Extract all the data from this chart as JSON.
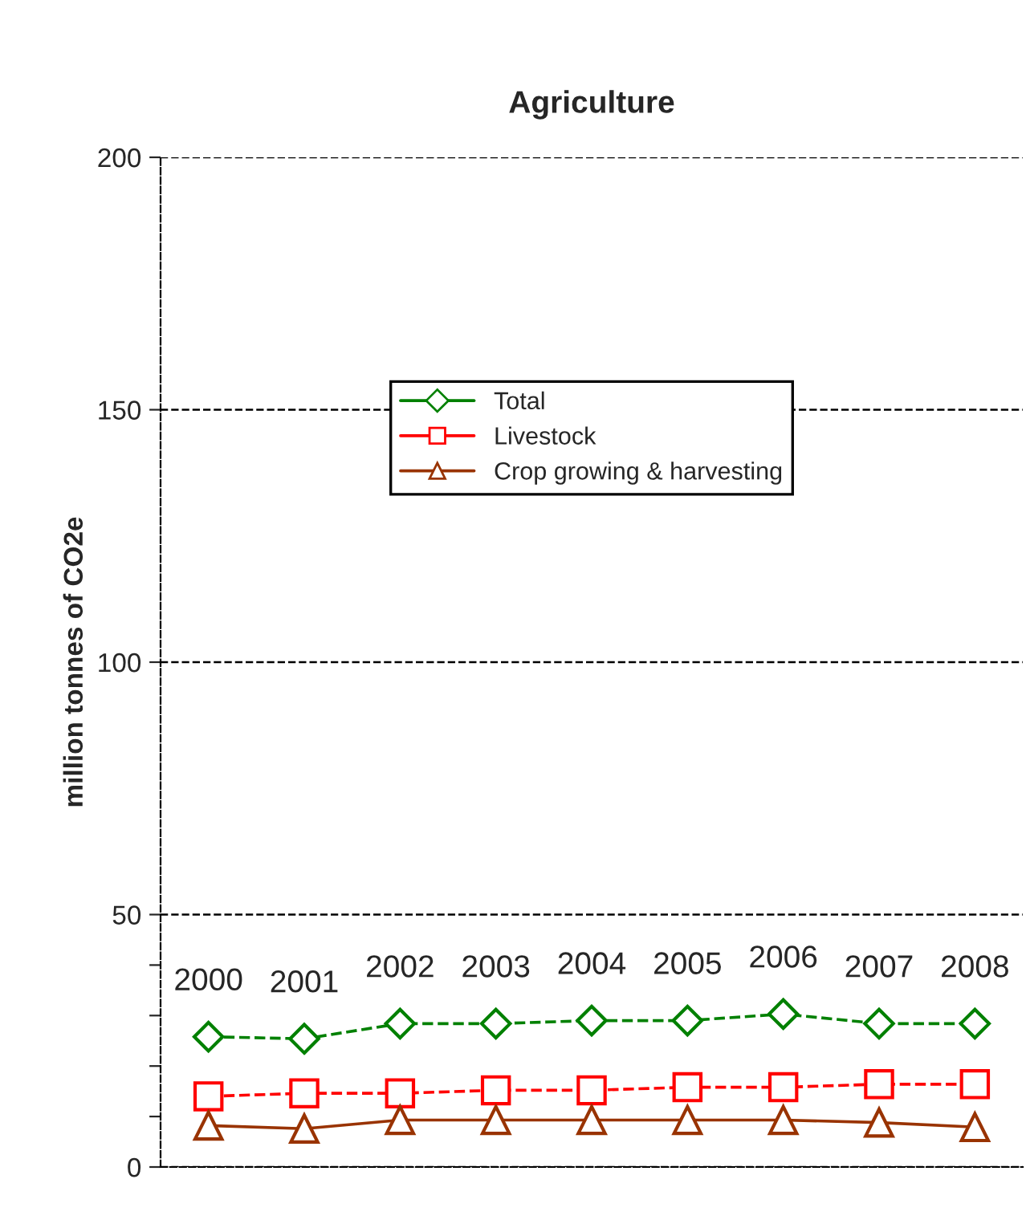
{
  "chart_data": {
    "type": "line",
    "title": "Agriculture",
    "ylabel": "million tonnes of CO2e",
    "categories": [
      "2000",
      "2001",
      "2002",
      "2003",
      "2004",
      "2005",
      "2006",
      "2007",
      "2008"
    ],
    "series": [
      {
        "name": "Total",
        "color": "#008000",
        "marker": "diamond",
        "line_style": "dashed",
        "values": [
          25.8,
          25.4,
          28.4,
          28.4,
          29.0,
          29.0,
          30.3,
          28.4,
          28.4
        ]
      },
      {
        "name": "Livestock",
        "color": "#ff0000",
        "marker": "square",
        "line_style": "dashed",
        "values": [
          14.0,
          14.6,
          14.6,
          15.2,
          15.2,
          15.8,
          15.8,
          16.4,
          16.4
        ]
      },
      {
        "name": "Crop growing & harvesting",
        "color": "#993300",
        "marker": "triangle",
        "line_style": "solid",
        "values": [
          8.2,
          7.6,
          9.3,
          9.3,
          9.3,
          9.3,
          9.3,
          8.8,
          7.9
        ]
      }
    ],
    "ylim": [
      0,
      200
    ],
    "yticks": [
      0,
      {
        "value": 10,
        "label": null
      },
      {
        "value": 20,
        "label": null
      },
      {
        "value": 30,
        "label": null
      },
      {
        "value": 40,
        "label": null
      },
      50,
      100,
      150,
      200
    ],
    "grid": "y",
    "legend": "top"
  }
}
